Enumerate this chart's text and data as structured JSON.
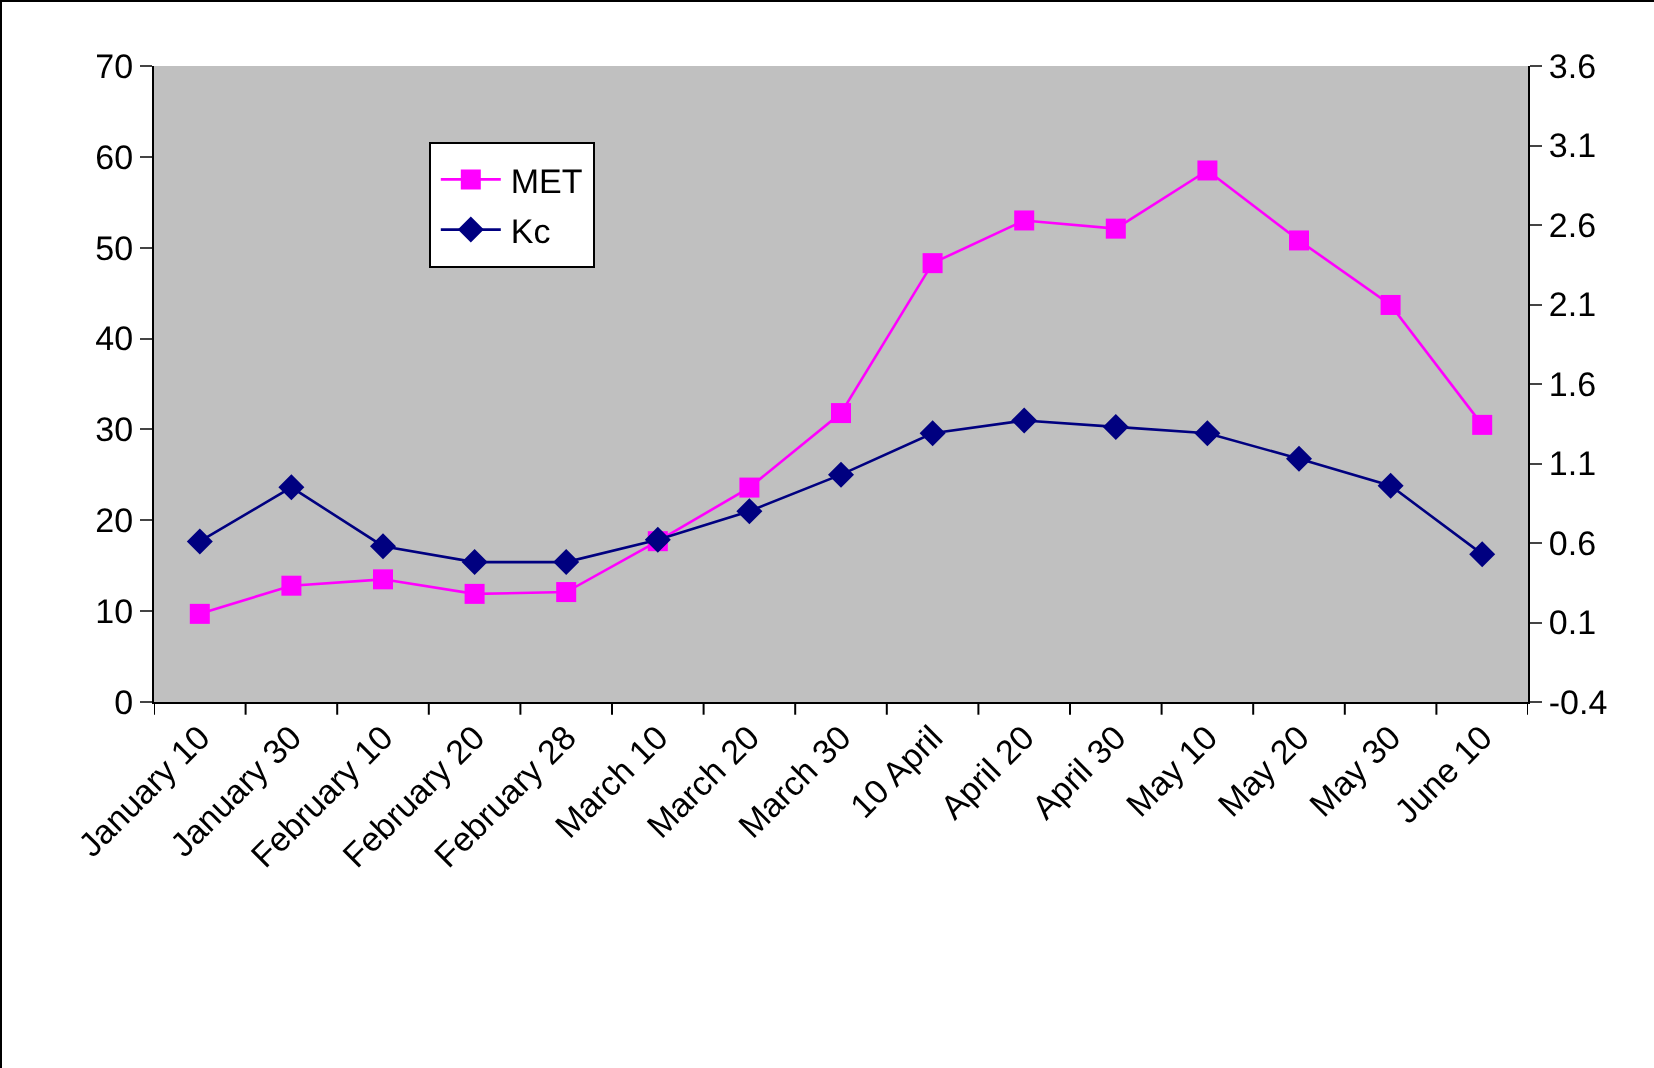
{
  "chart_data": {
    "type": "line",
    "categories": [
      "January 10",
      "January 30",
      "February 10",
      "February 20",
      "February 28",
      "March 10",
      "March 20",
      "March 30",
      "10 April",
      "April 20",
      "April 30",
      "May 10",
      "May 20",
      "May 30",
      "June 10"
    ],
    "series": [
      {
        "name": "MET",
        "color": "#ff00ff",
        "marker": "square",
        "values": [
          9.7,
          12.8,
          13.5,
          11.9,
          12.1,
          17.7,
          23.6,
          31.8,
          48.3,
          53.0,
          52.1,
          58.5,
          50.8,
          43.7,
          30.5
        ]
      },
      {
        "name": "Kc",
        "color": "#000080",
        "marker": "diamond",
        "axis": "y2",
        "values": [
          0.61,
          0.95,
          0.58,
          0.48,
          0.48,
          0.62,
          0.8,
          1.03,
          1.29,
          1.37,
          1.33,
          1.29,
          1.13,
          0.96,
          0.53
        ]
      }
    ],
    "ylim": [
      0,
      70
    ],
    "yticks": [
      0,
      10,
      20,
      30,
      40,
      50,
      60,
      70
    ],
    "y2lim": [
      -0.4,
      3.6
    ],
    "y2ticks": [
      -0.4,
      0.1,
      0.6,
      1.1,
      1.6,
      2.1,
      2.6,
      3.1,
      3.6
    ],
    "grid": false,
    "legend": "top left",
    "line_style": "solid"
  }
}
